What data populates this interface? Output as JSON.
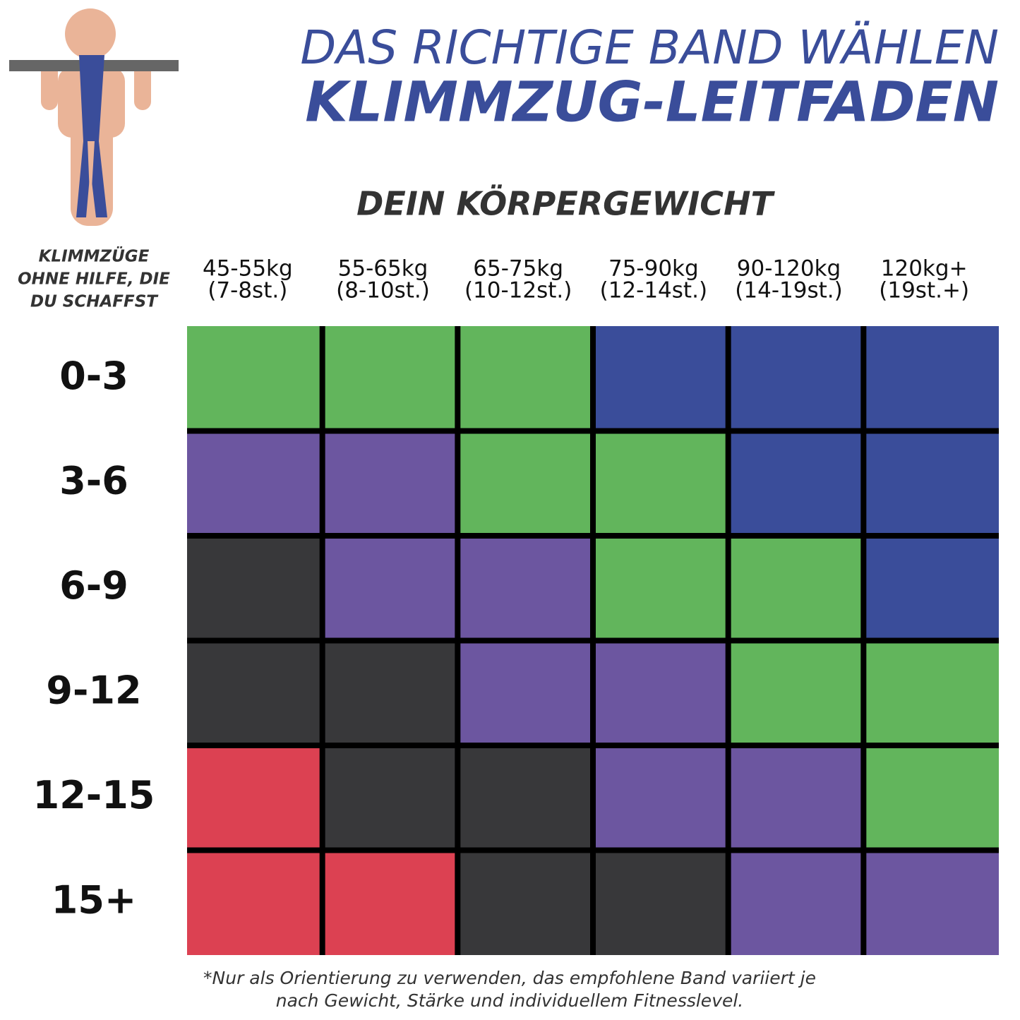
{
  "header": {
    "title": "DAS RICHTIGE BAND WÄHLEN",
    "subtitle": "KLIMMZUG-LEITFADEN"
  },
  "table": {
    "column_heading": "DEIN KÖRPERGEWICHT",
    "row_heading": [
      "KLIMMZÜGE",
      "OHNE HILFE, DIE",
      "DU SCHAFFST"
    ],
    "columns": [
      [
        "45-55kg",
        "(7-8st.)"
      ],
      [
        "55-65kg",
        "(8-10st.)"
      ],
      [
        "65-75kg",
        "(10-12st.)"
      ],
      [
        "75-90kg",
        "(12-14st.)"
      ],
      [
        "90-120kg",
        "(14-19st.)"
      ],
      [
        "120kg+",
        "(19st.+)"
      ]
    ],
    "rows": [
      "0-3",
      "3-6",
      "6-9",
      "9-12",
      "12-15",
      "15+"
    ],
    "cells": [
      [
        "#62b55c",
        "#62b55c",
        "#62b55c",
        "#3a4d9a",
        "#3a4d9a",
        "#3a4d9a"
      ],
      [
        "#6c56a0",
        "#6c56a0",
        "#62b55c",
        "#62b55c",
        "#3a4d9a",
        "#3a4d9a"
      ],
      [
        "#38383a",
        "#6c56a0",
        "#6c56a0",
        "#62b55c",
        "#62b55c",
        "#3a4d9a"
      ],
      [
        "#38383a",
        "#38383a",
        "#6c56a0",
        "#6c56a0",
        "#62b55c",
        "#62b55c"
      ],
      [
        "#dc4152",
        "#38383a",
        "#38383a",
        "#6c56a0",
        "#6c56a0",
        "#62b55c"
      ],
      [
        "#dc4152",
        "#dc4152",
        "#38383a",
        "#38383a",
        "#6c56a0",
        "#6c56a0"
      ]
    ]
  },
  "footnote": [
    "*Nur als Orientierung zu verwenden, das empfohlene Band variiert je",
    "nach Gewicht, Stärke und individuellem Fitnesslevel."
  ]
}
